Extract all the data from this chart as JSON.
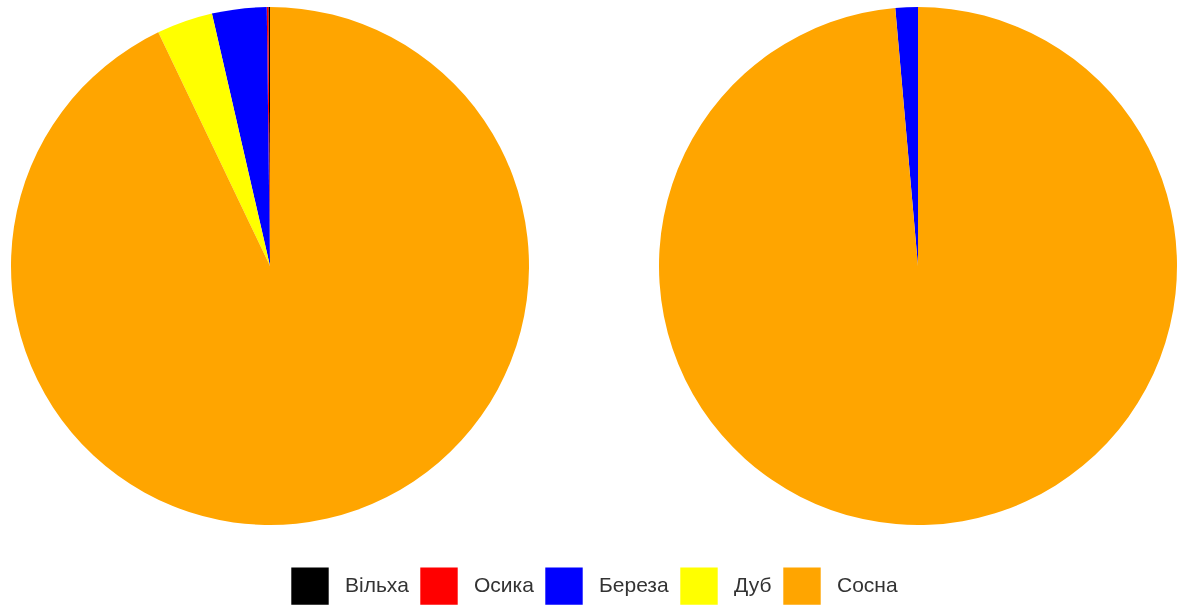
{
  "chart_data": [
    {
      "type": "pie",
      "categories": [
        "Вільха",
        "Осика",
        "Береза",
        "Дуб",
        "Сосна"
      ],
      "values": [
        0.1,
        0.1,
        3.4,
        3.5,
        92.9
      ],
      "colors": [
        "#000000",
        "#ff0000",
        "#0000ff",
        "#ffff00",
        "#ffa500"
      ],
      "legend": "bottom"
    },
    {
      "type": "pie",
      "categories": [
        null,
        null
      ],
      "values": [
        1.4,
        98.6
      ],
      "colors": [
        "#0000ff",
        "#ffa500"
      ]
    }
  ]
}
